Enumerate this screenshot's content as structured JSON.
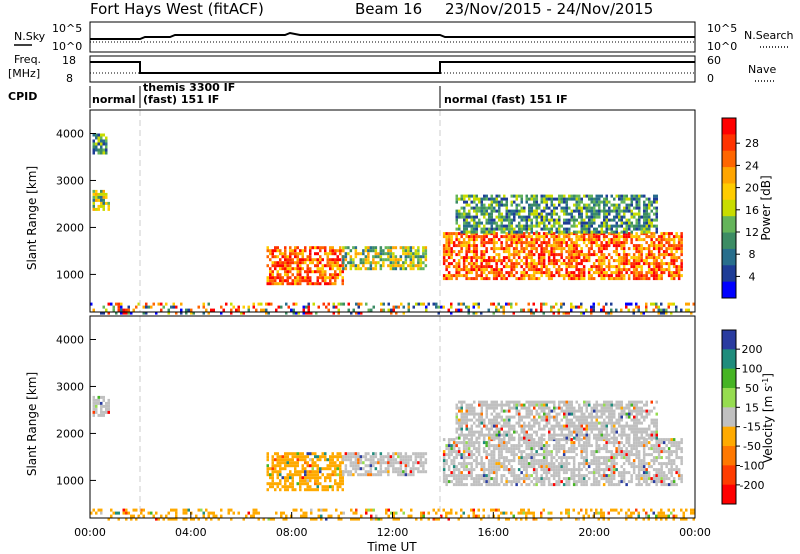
{
  "header": {
    "station": "Fort Hays West (fitACF)",
    "beam_label": "Beam 16",
    "date_range": "23/Nov/2015 - 24/Nov/2015"
  },
  "sky_panel": {
    "left_label": "N.Sky",
    "right_label": "N.Search",
    "left_ticks": [
      "10^5",
      "10^0"
    ],
    "right_ticks": [
      "10^5",
      "10^0"
    ]
  },
  "freq_panel": {
    "left_label_line1": "Freq.",
    "left_label_line2": "[MHz]",
    "right_label": "Nave",
    "left_ticks": [
      "18",
      "8"
    ],
    "right_ticks": [
      "60",
      "0"
    ]
  },
  "cpid": {
    "label": "CPID",
    "segments": [
      {
        "line1": "normal",
        "line2": ""
      },
      {
        "line1": "themis 3300 IF",
        "line2": "(fast) 151 IF"
      },
      {
        "line1": "normal (fast) 151 IF",
        "line2": ""
      }
    ]
  },
  "time_axis": {
    "label": "Time UT",
    "ticks": [
      "00:00",
      "04:00",
      "08:00",
      "12:00",
      "16:00",
      "20:00",
      "00:00"
    ],
    "start_hour": 0,
    "end_hour": 24
  },
  "colorbars": {
    "power": {
      "label": "Power [dB]",
      "ticks": [
        "28",
        "24",
        "20",
        "16",
        "12",
        "8",
        "4"
      ],
      "colors": [
        "#ff0000",
        "#ff3300",
        "#ff6600",
        "#ffa500",
        "#ffcc00",
        "#c8dc00",
        "#64b45a",
        "#3c8c64",
        "#286e8c",
        "#1e3c96",
        "#0000ff"
      ]
    },
    "velocity": {
      "label": "Velocity [m s",
      "label_sup": "-1",
      "label_end": "]",
      "ticks": [
        "200",
        "100",
        "50",
        "15",
        "-15",
        "-50",
        "-100",
        "-200"
      ],
      "colors": [
        "#2a3ca0",
        "#1f8c7c",
        "#46b424",
        "#96dc50",
        "#c0c0c0",
        "#ffaa00",
        "#ff7800",
        "#ff3c00",
        "#ff0000"
      ]
    }
  },
  "chart_data": [
    {
      "type": "heatmap",
      "panel": "power",
      "ylabel": "Slant Range [km]",
      "yticks": [
        "4000",
        "3000",
        "2000",
        "1000"
      ],
      "ylim": [
        200,
        4500
      ],
      "xlim_hours": [
        0,
        24
      ],
      "regions": [
        {
          "hours": [
            0.1,
            0.7
          ],
          "range_km": [
            2400,
            2800
          ],
          "level": "mid"
        },
        {
          "hours": [
            0.1,
            0.6
          ],
          "range_km": [
            3600,
            4000
          ],
          "level": "low"
        },
        {
          "hours": [
            7.0,
            10.0
          ],
          "range_km": [
            800,
            1600
          ],
          "level": "high"
        },
        {
          "hours": [
            10.0,
            13.3
          ],
          "range_km": [
            1100,
            1600
          ],
          "level": "mid"
        },
        {
          "hours": [
            14.0,
            23.5
          ],
          "range_km": [
            900,
            1900
          ],
          "level": "high"
        },
        {
          "hours": [
            14.5,
            22.5
          ],
          "range_km": [
            1900,
            2700
          ],
          "level": "low"
        },
        {
          "hours": [
            0.0,
            24.0
          ],
          "range_km": [
            200,
            400
          ],
          "level": "mixed"
        }
      ]
    },
    {
      "type": "heatmap",
      "panel": "velocity",
      "ylabel": "Slant Range [km]",
      "yticks": [
        "4000",
        "3000",
        "2000",
        "1000"
      ],
      "ylim": [
        200,
        4500
      ],
      "xlim_hours": [
        0,
        24
      ],
      "regions": [
        {
          "hours": [
            0.1,
            0.7
          ],
          "range_km": [
            2400,
            2800
          ],
          "velocity": "near zero"
        },
        {
          "hours": [
            7.0,
            10.0
          ],
          "range_km": [
            800,
            1600
          ],
          "velocity": "-15 to -50"
        },
        {
          "hours": [
            10.0,
            13.3
          ],
          "range_km": [
            1100,
            1600
          ],
          "velocity": "near zero"
        },
        {
          "hours": [
            14.0,
            23.5
          ],
          "range_km": [
            900,
            1900
          ],
          "velocity": "near zero"
        },
        {
          "hours": [
            14.5,
            22.5
          ],
          "range_km": [
            1900,
            2700
          ],
          "velocity": "near zero"
        },
        {
          "hours": [
            0.0,
            24.0
          ],
          "range_km": [
            200,
            400
          ],
          "velocity": "-15 to -50"
        }
      ]
    }
  ]
}
